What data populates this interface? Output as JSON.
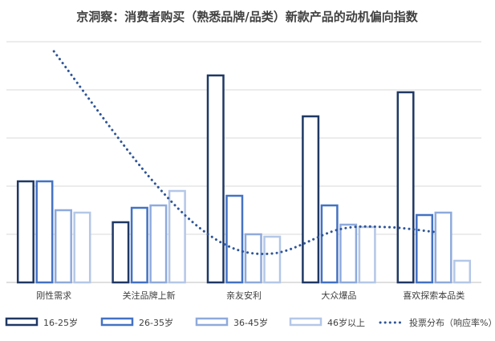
{
  "chart_data": {
    "type": "bar",
    "title": "京洞察：消费者购买（熟悉品牌/品类）新款产品的动机偏向指数",
    "categories": [
      "刚性需求",
      "关注品牌上新",
      "亲友安利",
      "大众爆品",
      "喜欢探索本品类"
    ],
    "series": [
      {
        "name": "16-25岁",
        "color": "#1f3864",
        "values": [
          2.1,
          1.25,
          4.3,
          3.45,
          3.95
        ]
      },
      {
        "name": "26-35岁",
        "color": "#4472c4",
        "values": [
          2.1,
          1.55,
          1.8,
          1.6,
          1.4
        ]
      },
      {
        "name": "36-45岁",
        "color": "#8faadc",
        "values": [
          1.5,
          1.6,
          1.0,
          1.2,
          1.45
        ]
      },
      {
        "name": "46岁以上",
        "color": "#b4c7e7",
        "values": [
          1.45,
          1.9,
          0.95,
          1.15,
          0.45
        ]
      }
    ],
    "line_series": {
      "name": "投票分布（响应率%）",
      "color": "#2f5597",
      "x": [
        0.0,
        1.0,
        1.7,
        2.3,
        3.0,
        3.5,
        4.0
      ],
      "values": [
        4.8,
        2.2,
        0.9,
        0.6,
        1.1,
        1.15,
        1.05
      ]
    },
    "ylim": [
      0,
      5
    ],
    "grid": true,
    "legend_position": "bottom"
  }
}
